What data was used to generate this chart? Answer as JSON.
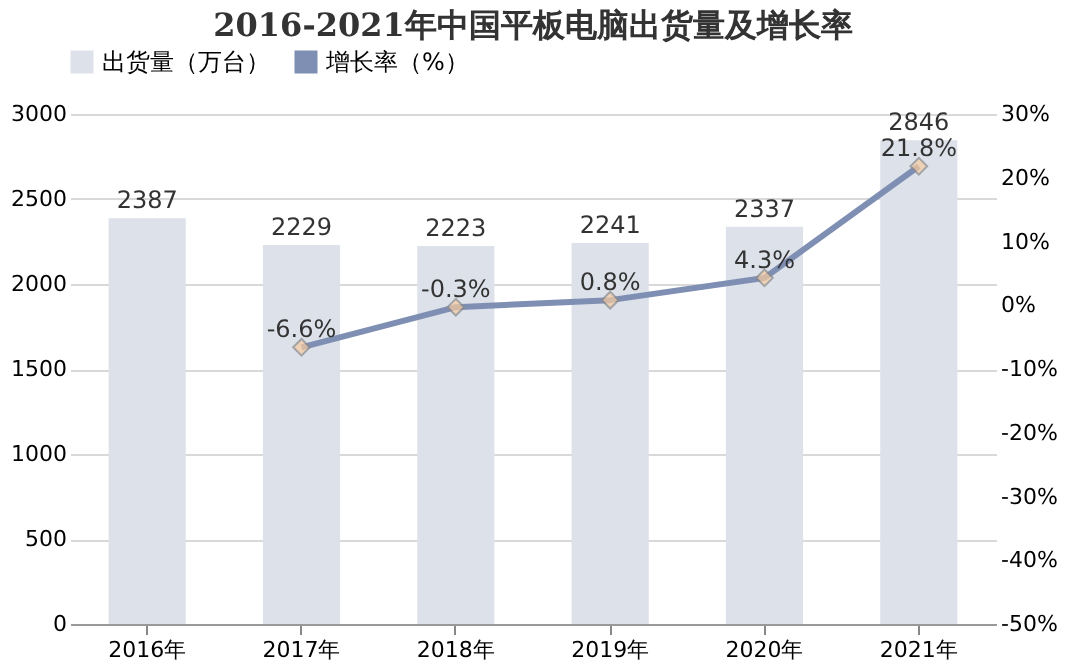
{
  "chart_data": {
    "type": "bar",
    "title": "2016-2021年中国平板电脑出货量及增长率",
    "categories": [
      "2016年",
      "2017年",
      "2018年",
      "2019年",
      "2020年",
      "2021年"
    ],
    "series": [
      {
        "name": "出货量（万台）",
        "color": "#dde1ea",
        "values": [
          2387,
          2229,
          2223,
          2241,
          2337,
          2846
        ],
        "value_labels": [
          "2387",
          "2229",
          "2223",
          "2241",
          "2337",
          "2846"
        ]
      },
      {
        "name": "增长率（%）",
        "type": "line",
        "axis": "y2",
        "color": "#7f8fb3",
        "marker": "diamond",
        "values": [
          null,
          -6.6,
          -0.3,
          0.8,
          4.3,
          21.8
        ],
        "value_labels": [
          null,
          "-6.6%",
          "-0.3%",
          "0.8%",
          "4.3%",
          "21.8%"
        ]
      }
    ],
    "ylim": [
      0,
      3000
    ],
    "yticks": [
      0,
      500,
      1000,
      1500,
      2000,
      2500,
      3000
    ],
    "y2lim": [
      -50,
      30
    ],
    "y2ticks": [
      {
        "value": -50,
        "label": "-50%"
      },
      {
        "value": -40,
        "label": "-40%"
      },
      {
        "value": -30,
        "label": "-30%"
      },
      {
        "value": -20,
        "label": "-20%"
      },
      {
        "value": -10,
        "label": "-10%"
      },
      {
        "value": 0,
        "label": "0%"
      },
      {
        "value": 10,
        "label": "10%"
      },
      {
        "value": 20,
        "label": "20%"
      },
      {
        "value": 30,
        "label": "30%"
      }
    ],
    "grid": "y",
    "legend": "top"
  }
}
